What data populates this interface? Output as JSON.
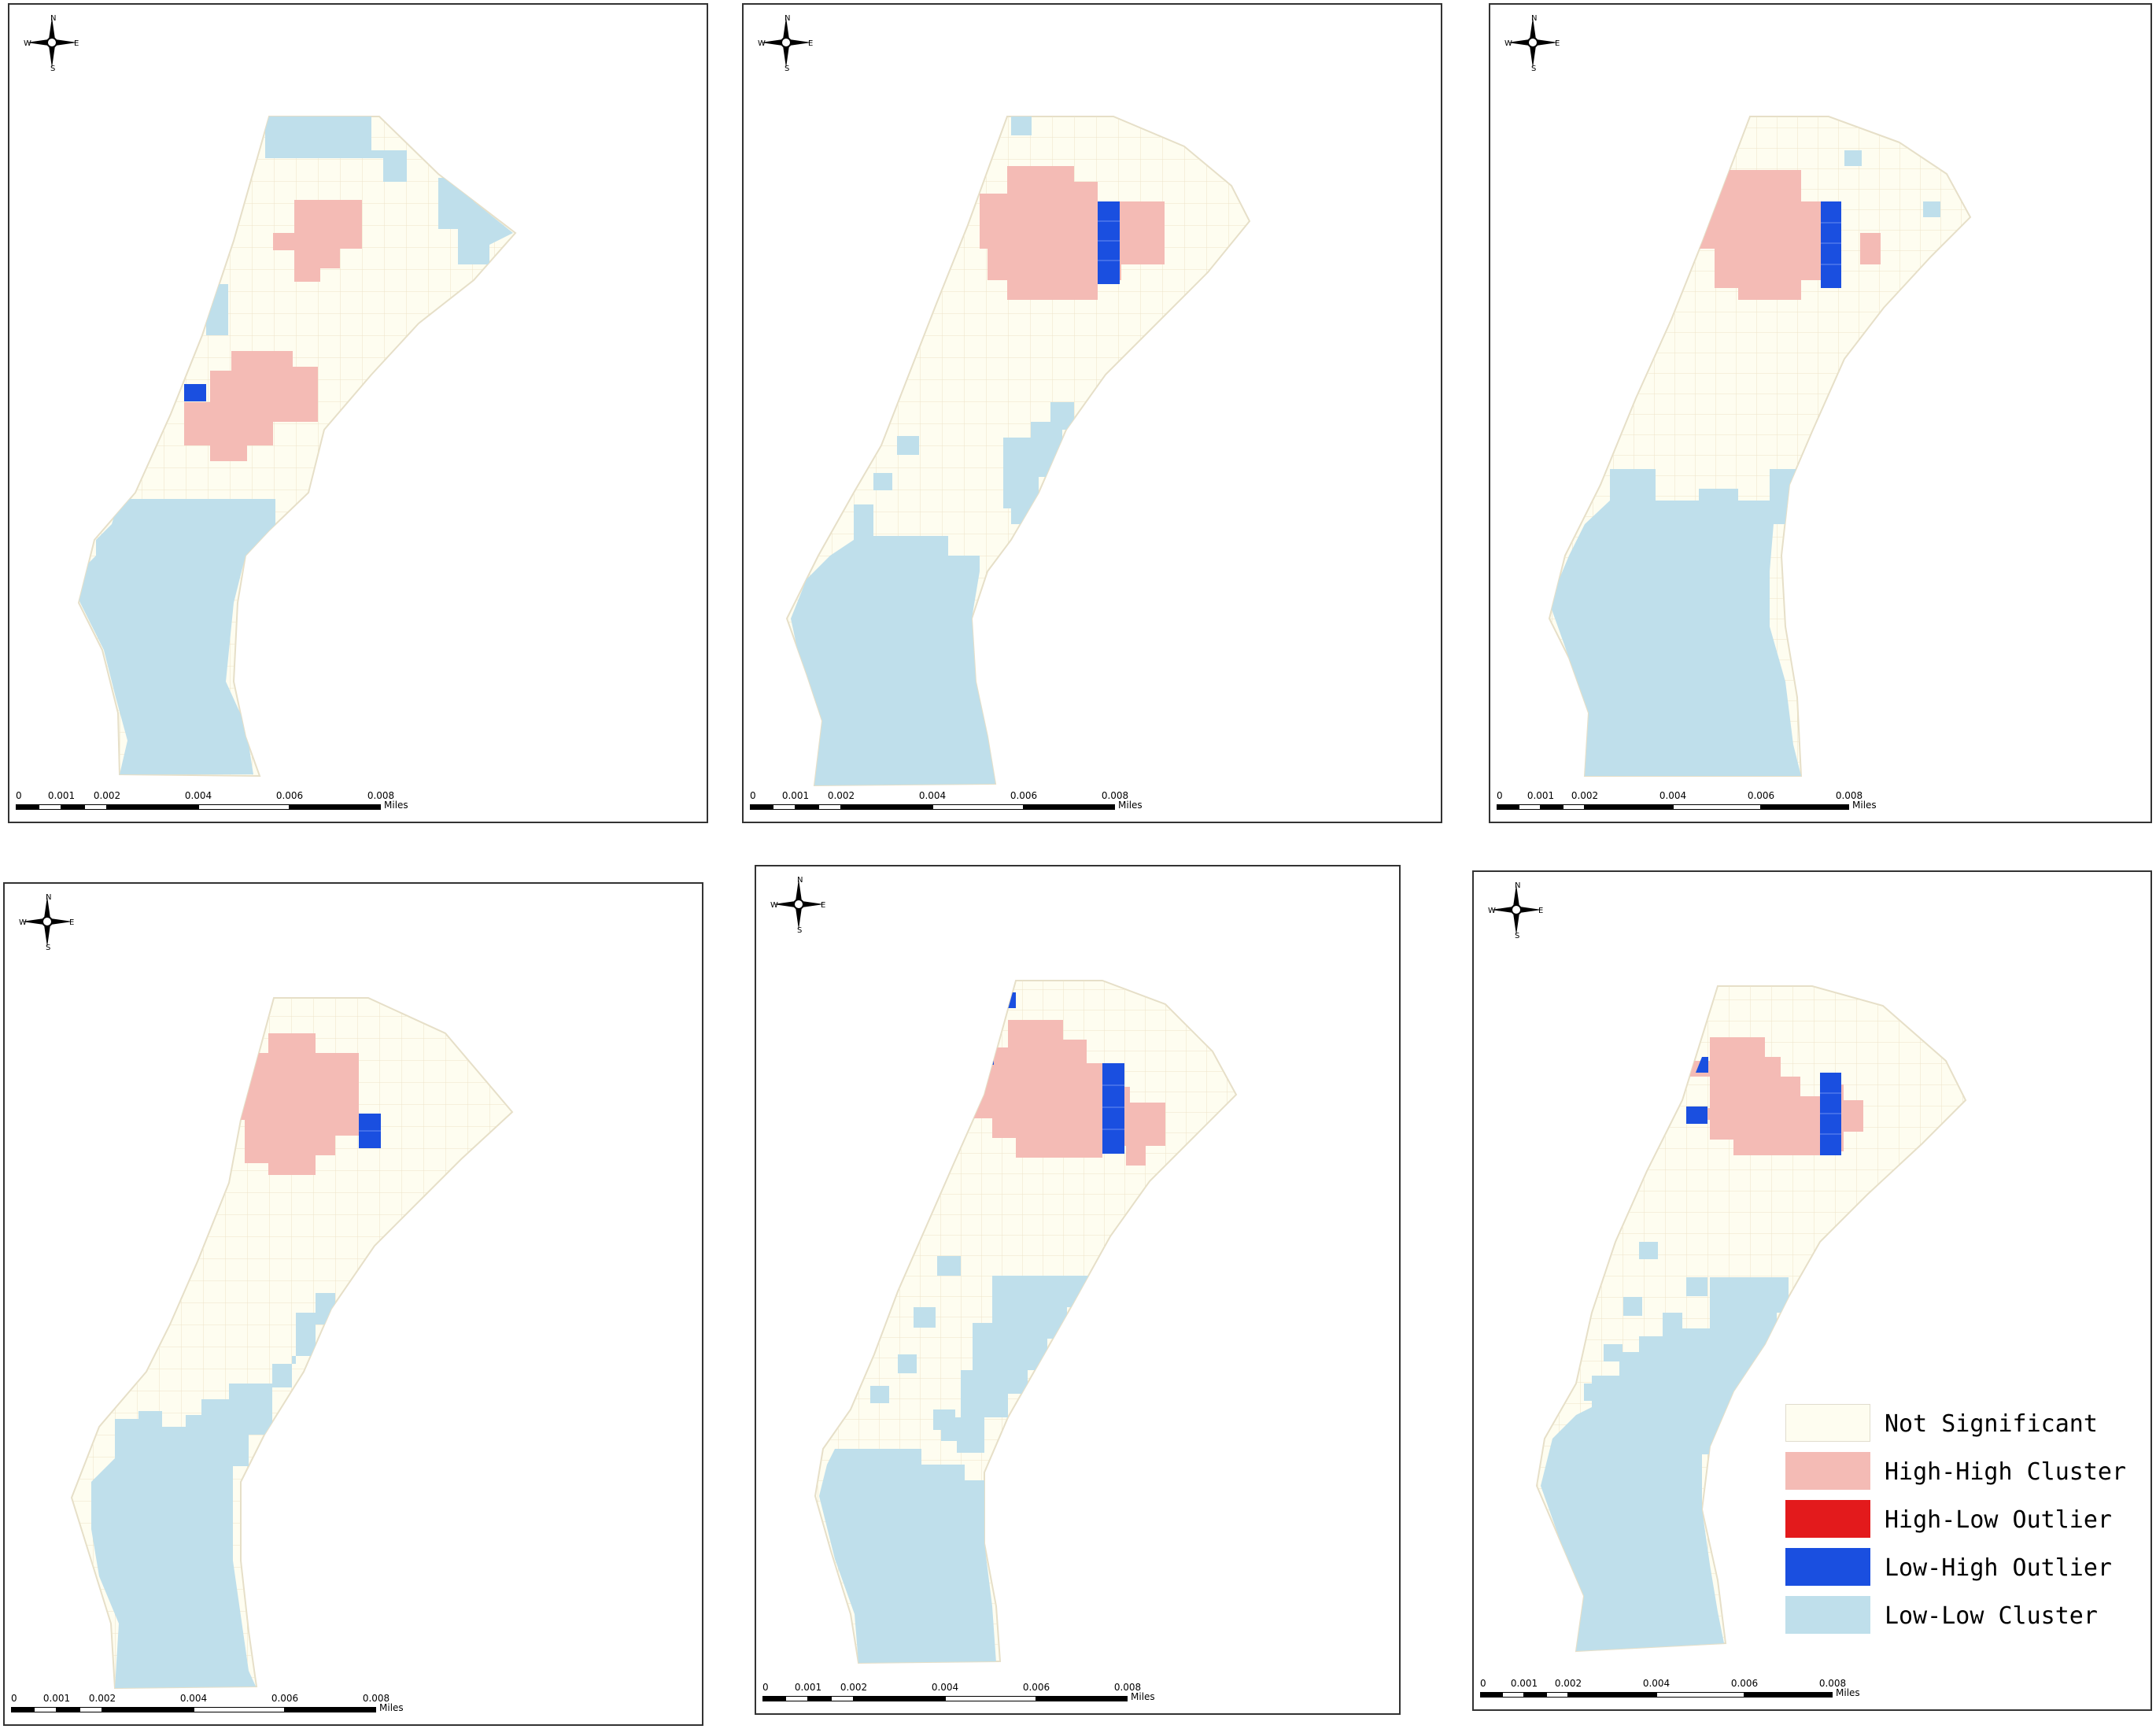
{
  "colors": {
    "not_significant": "#fefdf0",
    "not_significant_grid": "#ede4c9",
    "high_high": "#f4bbb5",
    "high_low": "#e31a1c",
    "low_high": "#1a4fe0",
    "low_low": "#bfdfeb"
  },
  "compass": {
    "icon": "north-arrow-compass-icon",
    "n": "N",
    "s": "S",
    "e": "E",
    "w": "W"
  },
  "scale": {
    "ticks": [
      "0",
      "0.001",
      "0.002",
      "0.004",
      "0.006",
      "0.008"
    ],
    "unit": "Miles"
  },
  "legend": [
    {
      "label": "Not Significant",
      "color": "#fefdf0",
      "border": "#e0dccd"
    },
    {
      "label": "High-High Cluster",
      "color": "#f4bbb5",
      "border": "#f4bbb5"
    },
    {
      "label": "High-Low Outlier",
      "color": "#e31a1c",
      "border": "#e31a1c"
    },
    {
      "label": "Low-High Outlier",
      "color": "#1a4fe0",
      "border": "#1a4fe0"
    },
    {
      "label": "Low-Low Cluster",
      "color": "#bfdfeb",
      "border": "#bfdfeb"
    }
  ],
  "maps": [
    {
      "name": "map-1"
    },
    {
      "name": "map-2"
    },
    {
      "name": "map-3"
    },
    {
      "name": "map-4"
    },
    {
      "name": "map-5"
    },
    {
      "name": "map-6"
    }
  ]
}
